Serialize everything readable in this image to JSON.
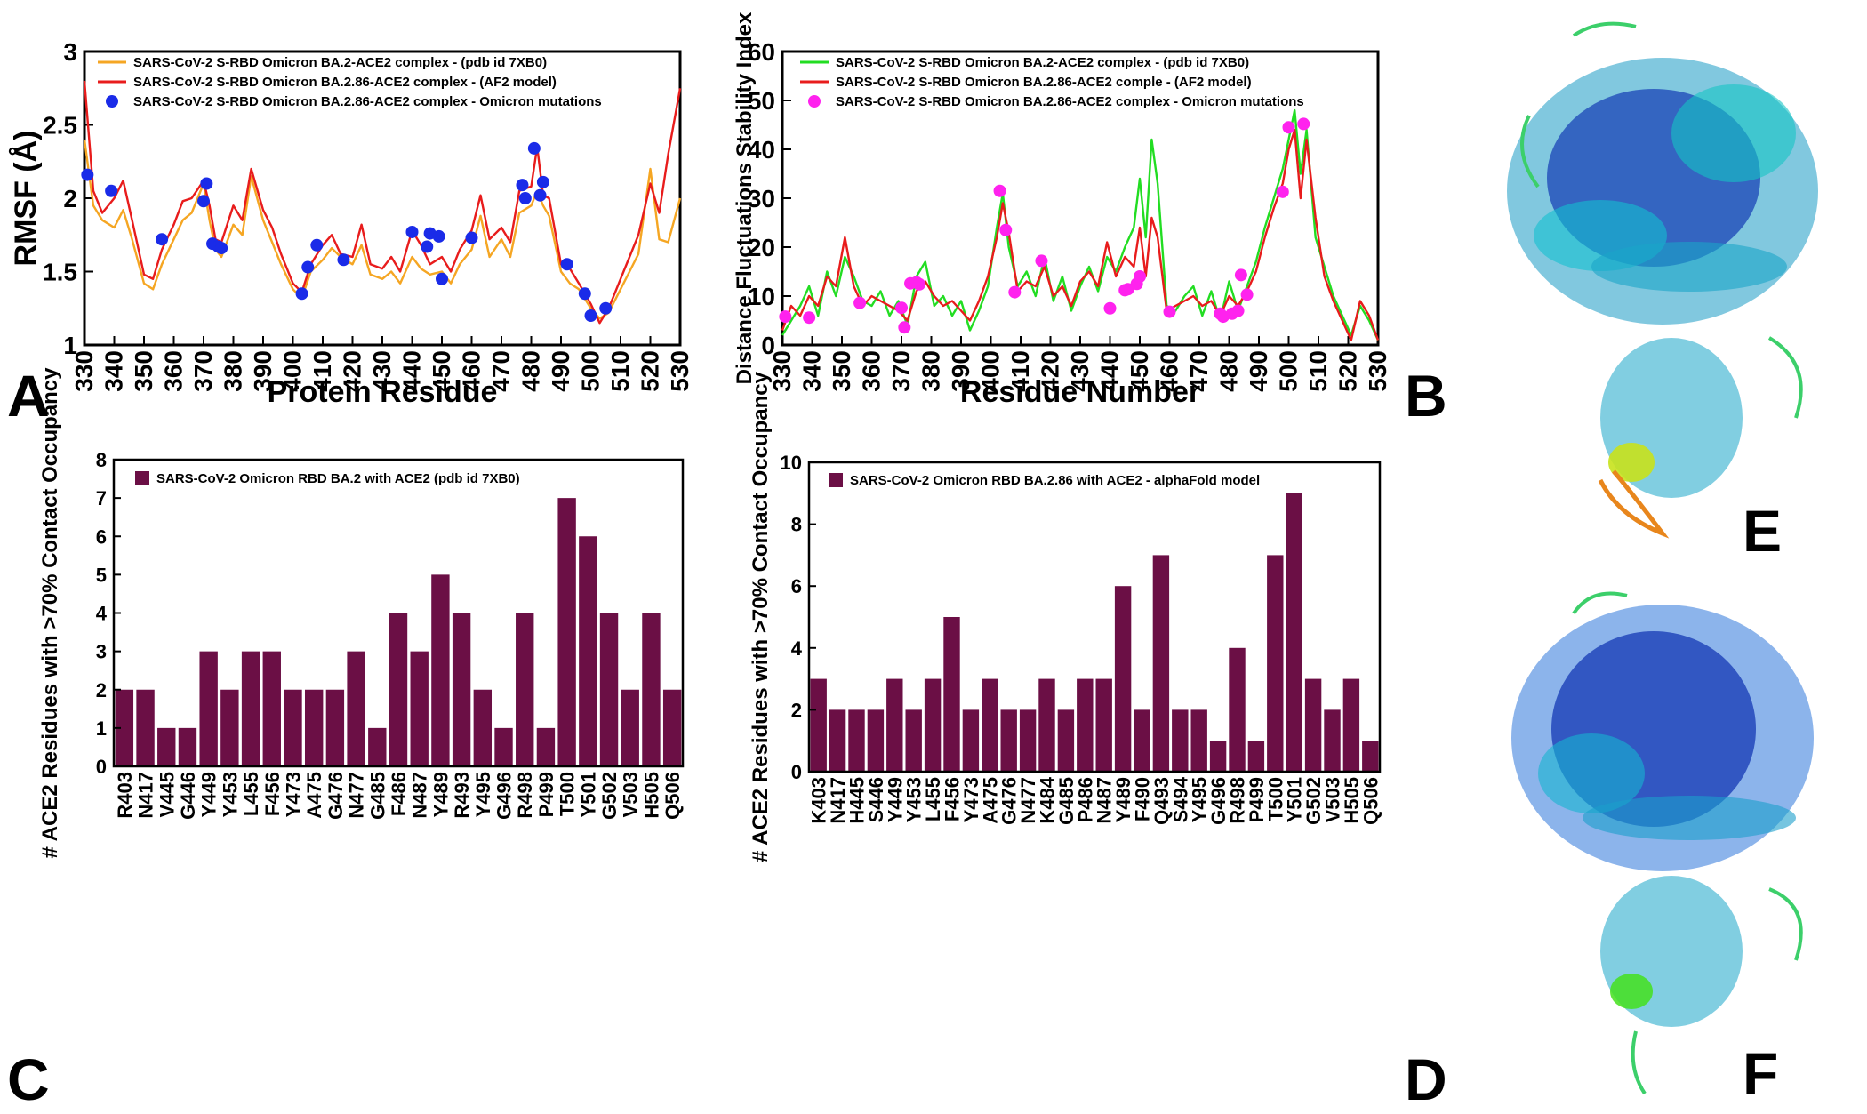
{
  "panel_letters": {
    "A": "A",
    "B": "B",
    "C": "C",
    "D": "D",
    "E": "E",
    "F": "F"
  },
  "colors": {
    "ba2_rmsf": "#f5a623",
    "ba286": "#e81c1c",
    "mut_blue": "#1a2be8",
    "ba2_dfsi": "#22dd22",
    "mut_magenta": "#ff22ee",
    "bar": "#6b0f45"
  },
  "chart_data": [
    {
      "id": "A",
      "type": "line",
      "xlabel": "Protein Residue",
      "ylabel": "RMSF (Å)",
      "xlim": [
        330,
        530
      ],
      "ylim": [
        1,
        3
      ],
      "xticks": [
        330,
        340,
        350,
        360,
        370,
        380,
        390,
        400,
        410,
        420,
        430,
        440,
        450,
        460,
        470,
        480,
        490,
        500,
        510,
        520,
        530
      ],
      "yticks": [
        1,
        1.5,
        2,
        2.5,
        3
      ],
      "ytick_labels": [
        "1",
        "1.5",
        "2",
        "2.5",
        "3"
      ],
      "series": [
        {
          "name": "SARS-CoV-2 S-RBD Omicron BA.2-ACE2  complex - (pdb id 7XB0)",
          "kind": "line",
          "color": "#f5a623",
          "x": [
            330,
            333,
            336,
            340,
            343,
            346,
            350,
            353,
            356,
            360,
            363,
            366,
            370,
            372,
            374,
            376,
            380,
            383,
            386,
            390,
            393,
            396,
            400,
            403,
            406,
            410,
            413,
            416,
            420,
            423,
            426,
            430,
            433,
            436,
            440,
            443,
            446,
            450,
            453,
            456,
            460,
            463,
            466,
            470,
            473,
            476,
            480,
            482,
            484,
            486,
            490,
            493,
            496,
            500,
            503,
            506,
            510,
            513,
            516,
            520,
            523,
            526,
            530
          ],
          "y": [
            2.4,
            1.95,
            1.85,
            1.8,
            1.92,
            1.72,
            1.42,
            1.38,
            1.55,
            1.72,
            1.85,
            1.9,
            2.1,
            1.85,
            1.65,
            1.6,
            1.82,
            1.75,
            2.15,
            1.85,
            1.7,
            1.55,
            1.38,
            1.32,
            1.5,
            1.58,
            1.66,
            1.6,
            1.55,
            1.68,
            1.48,
            1.45,
            1.5,
            1.42,
            1.6,
            1.52,
            1.48,
            1.5,
            1.42,
            1.55,
            1.65,
            1.88,
            1.6,
            1.72,
            1.6,
            1.9,
            1.95,
            2.05,
            1.95,
            1.88,
            1.5,
            1.42,
            1.38,
            1.25,
            1.18,
            1.22,
            1.38,
            1.5,
            1.62,
            2.2,
            1.72,
            1.7,
            2.0
          ]
        },
        {
          "name": "SARS-CoV-2 S-RBD Omicron BA.2.86-ACE2 complex - (AF2 model)",
          "kind": "line",
          "color": "#e81c1c",
          "x": [
            330,
            333,
            336,
            340,
            343,
            346,
            350,
            353,
            356,
            360,
            363,
            366,
            370,
            372,
            374,
            376,
            380,
            383,
            386,
            390,
            393,
            396,
            400,
            403,
            406,
            410,
            413,
            416,
            420,
            423,
            426,
            430,
            433,
            436,
            440,
            443,
            446,
            450,
            453,
            456,
            460,
            463,
            466,
            470,
            473,
            476,
            480,
            482,
            484,
            486,
            490,
            493,
            496,
            500,
            503,
            506,
            510,
            513,
            516,
            520,
            523,
            526,
            530
          ],
          "y": [
            2.8,
            2.05,
            1.9,
            2.0,
            2.12,
            1.85,
            1.48,
            1.45,
            1.65,
            1.82,
            1.98,
            2.0,
            2.12,
            1.95,
            1.72,
            1.7,
            1.95,
            1.85,
            2.2,
            1.92,
            1.8,
            1.62,
            1.42,
            1.36,
            1.55,
            1.68,
            1.75,
            1.62,
            1.6,
            1.82,
            1.55,
            1.52,
            1.6,
            1.5,
            1.78,
            1.68,
            1.55,
            1.6,
            1.5,
            1.65,
            1.78,
            2.02,
            1.72,
            1.8,
            1.7,
            2.05,
            2.08,
            2.35,
            2.02,
            2.0,
            1.55,
            1.52,
            1.42,
            1.28,
            1.15,
            1.25,
            1.45,
            1.6,
            1.75,
            2.1,
            1.9,
            2.3,
            2.75
          ]
        },
        {
          "name": "SARS-CoV-2 S-RBD Omicron BA.2.86-ACE2 complex - Omicron mutations",
          "kind": "scatter",
          "color": "#1a2be8",
          "x": [
            331,
            339,
            356,
            370,
            371,
            373,
            375,
            376,
            403,
            405,
            408,
            417,
            440,
            445,
            446,
            449,
            450,
            460,
            477,
            478,
            481,
            483,
            484,
            492,
            498,
            500,
            505
          ],
          "y": [
            2.16,
            2.05,
            1.72,
            1.98,
            2.1,
            1.69,
            1.67,
            1.66,
            1.35,
            1.53,
            1.68,
            1.58,
            1.77,
            1.67,
            1.76,
            1.74,
            1.45,
            1.73,
            2.09,
            2.0,
            2.34,
            2.02,
            2.11,
            1.55,
            1.35,
            1.2,
            1.25
          ]
        }
      ]
    },
    {
      "id": "B",
      "type": "line",
      "xlabel": "Residue Number",
      "ylabel": "Distance Fluctuations Stability Index",
      "xlim": [
        330,
        530
      ],
      "ylim": [
        0,
        60
      ],
      "xticks": [
        330,
        340,
        350,
        360,
        370,
        380,
        390,
        400,
        410,
        420,
        430,
        440,
        450,
        460,
        470,
        480,
        490,
        500,
        510,
        520,
        530
      ],
      "yticks": [
        0,
        10,
        20,
        30,
        40,
        50,
        60
      ],
      "ytick_labels": [
        "0",
        "10",
        "20",
        "30",
        "40",
        "50",
        "60"
      ],
      "series": [
        {
          "name": "SARS-CoV-2 S-RBD Omicron BA.2-ACE2 complex - (pdb id 7XB0)",
          "kind": "line",
          "color": "#22dd22",
          "x": [
            330,
            333,
            336,
            339,
            342,
            345,
            348,
            351,
            354,
            357,
            360,
            363,
            366,
            369,
            372,
            375,
            378,
            381,
            384,
            387,
            390,
            393,
            396,
            399,
            402,
            404,
            406,
            409,
            412,
            415,
            418,
            421,
            424,
            427,
            430,
            433,
            436,
            439,
            442,
            445,
            448,
            450,
            452,
            454,
            456,
            459,
            462,
            465,
            468,
            471,
            474,
            477,
            480,
            483,
            486,
            489,
            492,
            495,
            498,
            500,
            502,
            504,
            506,
            509,
            512,
            515,
            518,
            521,
            524,
            527,
            530
          ],
          "y": [
            2,
            5,
            8,
            12,
            6,
            15,
            10,
            18,
            14,
            9,
            8,
            11,
            6,
            9,
            4,
            14,
            17,
            8,
            10,
            6,
            9,
            3,
            7,
            12,
            24,
            31,
            20,
            12,
            15,
            10,
            18,
            9,
            14,
            7,
            12,
            16,
            11,
            18,
            15,
            20,
            24,
            34,
            22,
            42,
            33,
            8,
            7,
            10,
            12,
            6,
            11,
            5,
            13,
            7,
            12,
            17,
            24,
            30,
            36,
            42,
            48,
            35,
            44,
            22,
            16,
            10,
            6,
            2,
            8,
            5,
            1
          ]
        },
        {
          "name": "SARS-CoV-2 S-RBD Omicron BA.2.86-ACE2  comple - (AF2 model)",
          "kind": "line",
          "color": "#e81c1c",
          "x": [
            330,
            333,
            336,
            339,
            342,
            345,
            348,
            351,
            354,
            357,
            360,
            363,
            366,
            369,
            372,
            375,
            378,
            381,
            384,
            387,
            390,
            393,
            396,
            399,
            402,
            404,
            406,
            409,
            412,
            415,
            418,
            421,
            424,
            427,
            430,
            433,
            436,
            439,
            442,
            445,
            448,
            450,
            452,
            454,
            456,
            459,
            462,
            465,
            468,
            471,
            474,
            477,
            480,
            483,
            486,
            489,
            492,
            495,
            498,
            500,
            502,
            504,
            506,
            509,
            512,
            515,
            518,
            521,
            524,
            527,
            530
          ],
          "y": [
            3,
            8,
            6,
            10,
            8,
            14,
            12,
            22,
            12,
            8,
            10,
            9,
            8,
            7,
            5,
            11,
            13,
            10,
            8,
            9,
            7,
            5,
            9,
            14,
            22,
            29,
            23,
            11,
            13,
            12,
            16,
            10,
            12,
            8,
            13,
            15,
            12,
            21,
            14,
            18,
            16,
            24,
            14,
            26,
            22,
            7,
            8,
            9,
            10,
            8,
            9,
            6,
            10,
            8,
            11,
            15,
            22,
            28,
            33,
            40,
            44,
            30,
            42,
            26,
            14,
            9,
            5,
            1,
            9,
            6,
            1
          ]
        },
        {
          "name": "SARS-CoV-2 S-RBD Omicron BA.2.86-ACE2 complex - Omicron mutations",
          "kind": "scatter",
          "color": "#ff22ee",
          "x": [
            331,
            339,
            356,
            370,
            371,
            373,
            375,
            376,
            403,
            405,
            408,
            417,
            440,
            445,
            446,
            449,
            450,
            460,
            477,
            478,
            481,
            483,
            484,
            486,
            498,
            500,
            505
          ],
          "y": [
            5.8,
            5.6,
            8.6,
            7.6,
            3.6,
            12.6,
            12.8,
            12.4,
            31.5,
            23.5,
            10.8,
            17.2,
            7.5,
            11.2,
            11.4,
            12.5,
            14,
            6.8,
            6.4,
            5.8,
            6.4,
            7,
            14.3,
            10.3,
            31.3,
            44.5,
            45.2
          ]
        }
      ]
    },
    {
      "id": "C",
      "type": "bar",
      "ylabel": "# ACE2 Residues with >70% Contact Occupancy",
      "ylim": [
        0,
        8
      ],
      "yticks": [
        0,
        1,
        2,
        3,
        4,
        5,
        6,
        7,
        8
      ],
      "ytick_labels": [
        "0",
        "1",
        "2",
        "3",
        "4",
        "5",
        "6",
        "7",
        "8"
      ],
      "legend": "SARS-CoV-2 Omicron RBD BA.2 with ACE2 (pdb id 7XB0)",
      "categories": [
        "R403",
        "N417",
        "V445",
        "G446",
        "Y449",
        "Y453",
        "L455",
        "F456",
        "Y473",
        "A475",
        "G476",
        "N477",
        "G485",
        "F486",
        "N487",
        "Y489",
        "R493",
        "Y495",
        "G496",
        "R498",
        "P499",
        "T500",
        "Y501",
        "G502",
        "V503",
        "H505",
        "Q506"
      ],
      "values": [
        2,
        2,
        1,
        1,
        3,
        2,
        3,
        3,
        2,
        2,
        2,
        3,
        1,
        4,
        3,
        5,
        4,
        2,
        1,
        4,
        1,
        7,
        6,
        4,
        2,
        4,
        2
      ]
    },
    {
      "id": "D",
      "type": "bar",
      "ylabel": "# ACE2 Residues with >70% Contact Occupancy",
      "ylim": [
        0,
        10
      ],
      "yticks": [
        0,
        2,
        4,
        6,
        8,
        10
      ],
      "ytick_labels": [
        "0",
        "2",
        "4",
        "6",
        "8",
        "10"
      ],
      "legend": "SARS-CoV-2 Omicron RBD BA.2.86 with ACE2 - alphaFold model",
      "categories": [
        "K403",
        "N417",
        "H445",
        "S446",
        "Y449",
        "Y453",
        "L455",
        "F456",
        "Y473",
        "A475",
        "G476",
        "N477",
        "K484",
        "G485",
        "P486",
        "N487",
        "Y489",
        "F490",
        "Q493",
        "S494",
        "Y495",
        "G496",
        "R498",
        "P499",
        "T500",
        "Y501",
        "G502",
        "V503",
        "H505",
        "Q506"
      ],
      "values": [
        3,
        2,
        2,
        2,
        3,
        2,
        3,
        5,
        2,
        3,
        2,
        2,
        3,
        2,
        3,
        3,
        6,
        2,
        7,
        2,
        2,
        1,
        4,
        1,
        7,
        9,
        3,
        2,
        3,
        1
      ]
    }
  ]
}
